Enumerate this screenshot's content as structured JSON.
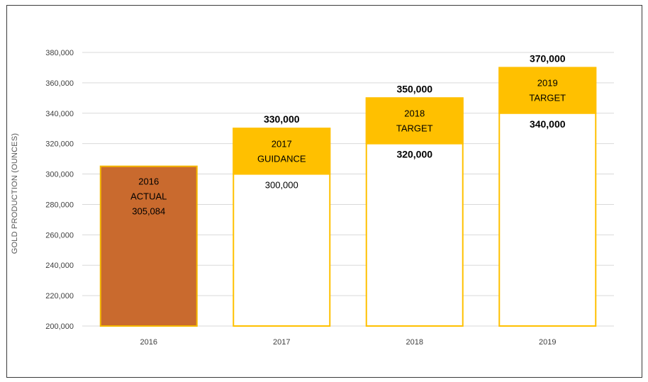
{
  "chart_data": {
    "type": "bar",
    "ylabel": "GOLD PRODUCTION (OUNCES)",
    "ylim": [
      200000,
      380000
    ],
    "ytick_labels": [
      "200,000",
      "220,000",
      "240,000",
      "260,000",
      "280,000",
      "300,000",
      "320,000",
      "340,000",
      "360,000",
      "380,000"
    ],
    "yticks": [
      200000,
      220000,
      240000,
      260000,
      280000,
      300000,
      320000,
      340000,
      360000,
      380000
    ],
    "grid": true,
    "categories": [
      "2016",
      "2017",
      "2018",
      "2019"
    ],
    "bars": [
      {
        "category": "2016",
        "kind": "actual",
        "value": 305084,
        "label_lines": [
          "2016",
          "ACTUAL",
          "305,084"
        ]
      },
      {
        "category": "2017",
        "kind": "range",
        "low": 300000,
        "high": 330000,
        "low_label": "300,000",
        "high_label": "330,000",
        "label_lines": [
          "2017",
          "GUIDANCE"
        ]
      },
      {
        "category": "2018",
        "kind": "range",
        "low": 320000,
        "high": 350000,
        "low_label": "320,000",
        "high_label": "350,000",
        "label_lines": [
          "2018",
          "TARGET"
        ]
      },
      {
        "category": "2019",
        "kind": "range",
        "low": 340000,
        "high": 370000,
        "low_label": "340,000",
        "high_label": "370,000",
        "label_lines": [
          "2019",
          "TARGET"
        ]
      }
    ],
    "colors": {
      "actual_fill": "#C96A2E",
      "actual_border": "#F5B800",
      "range_fill": "#FFC000",
      "outline": "#FFC000",
      "grid": "#D9D9D9"
    }
  }
}
